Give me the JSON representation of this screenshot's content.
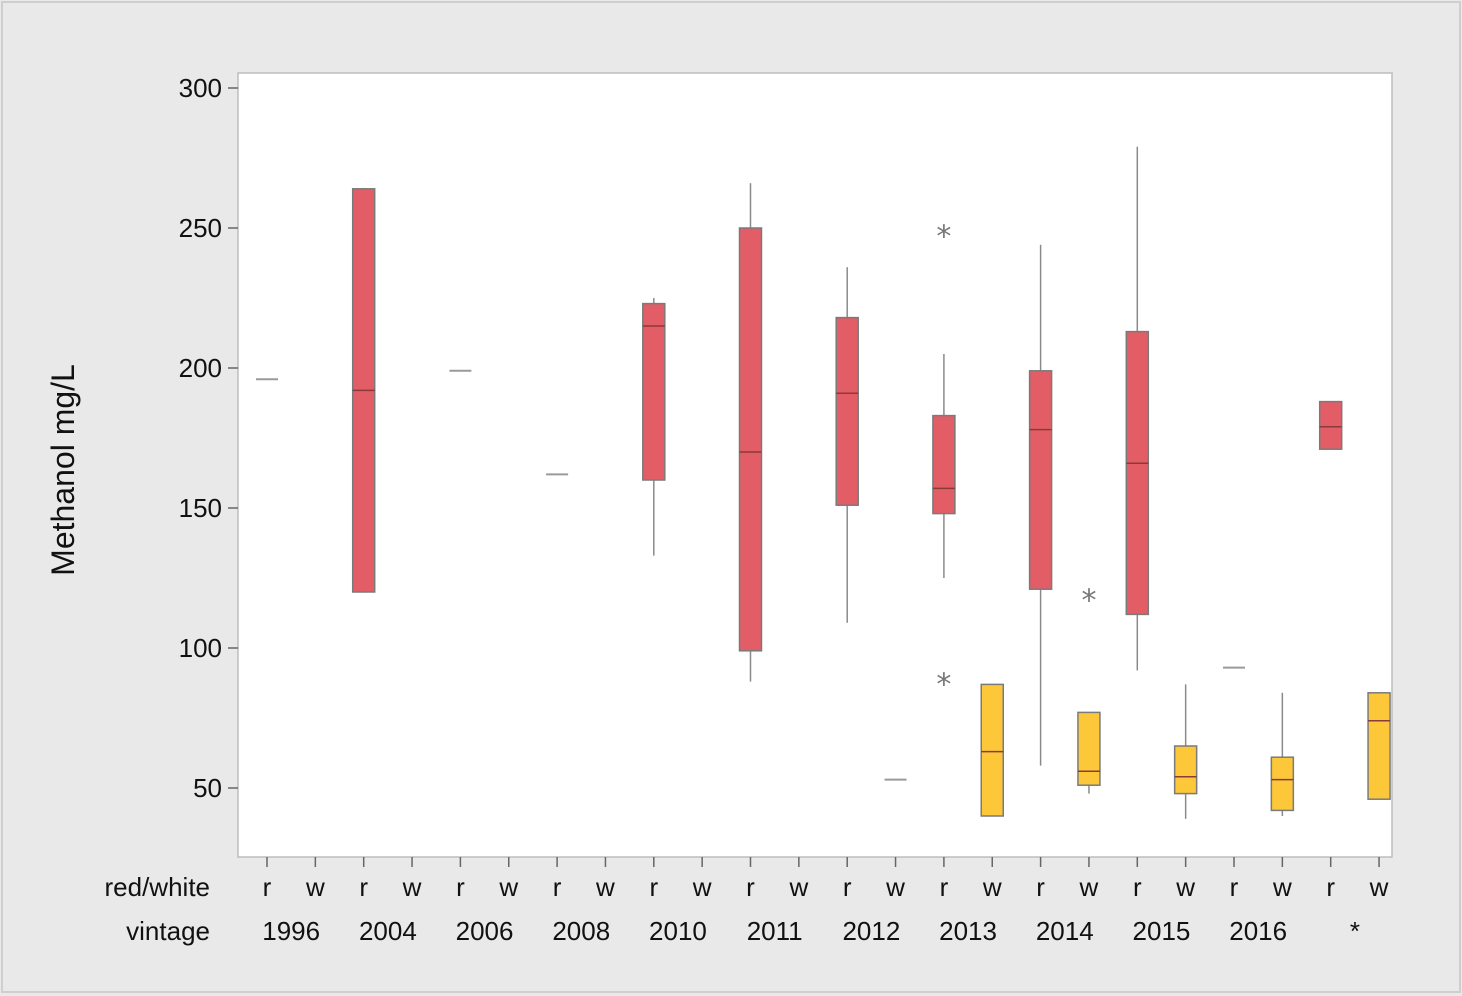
{
  "chart_data": {
    "type": "boxplot",
    "ylabel": "Methanol mg/L",
    "ylim": [
      35,
      305
    ],
    "yticks": [
      50,
      100,
      150,
      200,
      250,
      300
    ],
    "legend": "none",
    "grid": false,
    "row_labels": {
      "group": "red/white",
      "vintage": "vintage"
    },
    "group_values": [
      "r",
      "w"
    ],
    "vintages": [
      "1996",
      "2004",
      "2006",
      "2008",
      "2010",
      "2011",
      "2012",
      "2013",
      "2014",
      "2015",
      "2016",
      "*"
    ],
    "colors": {
      "r": "#e35d66",
      "w": "#fcc83a",
      "outline": "#7a7a7a"
    },
    "boxes": [
      {
        "vintage": "1996",
        "group": "r",
        "median": 196
      },
      {
        "vintage": "2004",
        "group": "r",
        "q1": 120,
        "median": 192,
        "q3": 264
      },
      {
        "vintage": "2006",
        "group": "r",
        "median": 199
      },
      {
        "vintage": "2008",
        "group": "r",
        "median": 162
      },
      {
        "vintage": "2010",
        "group": "r",
        "whisker_low": 133,
        "q1": 160,
        "median": 215,
        "q3": 223,
        "whisker_high": 225
      },
      {
        "vintage": "2011",
        "group": "r",
        "whisker_low": 88,
        "q1": 99,
        "median": 170,
        "q3": 250,
        "whisker_high": 266
      },
      {
        "vintage": "2012",
        "group": "r",
        "whisker_low": 109,
        "q1": 151,
        "median": 191,
        "q3": 218,
        "whisker_high": 236
      },
      {
        "vintage": "2012",
        "group": "w",
        "median": 53
      },
      {
        "vintage": "2013",
        "group": "r",
        "whisker_low": 125,
        "q1": 148,
        "median": 157,
        "q3": 183,
        "whisker_high": 205,
        "outliers": [
          248,
          88
        ]
      },
      {
        "vintage": "2013",
        "group": "w",
        "q1": 40,
        "median": 63,
        "q3": 87
      },
      {
        "vintage": "2014",
        "group": "r",
        "whisker_low": 58,
        "q1": 121,
        "median": 178,
        "q3": 199,
        "whisker_high": 244
      },
      {
        "vintage": "2014",
        "group": "w",
        "whisker_low": 48,
        "q1": 51,
        "median": 56,
        "q3": 77,
        "outliers": [
          118
        ]
      },
      {
        "vintage": "2015",
        "group": "r",
        "whisker_low": 92,
        "q1": 112,
        "median": 166,
        "q3": 213,
        "whisker_high": 279
      },
      {
        "vintage": "2015",
        "group": "w",
        "whisker_low": 39,
        "q1": 48,
        "median": 54,
        "q3": 65,
        "whisker_high": 87
      },
      {
        "vintage": "2016",
        "group": "r",
        "median": 93
      },
      {
        "vintage": "2016",
        "group": "w",
        "whisker_low": 40,
        "q1": 42,
        "median": 53,
        "q3": 61,
        "whisker_high": 84
      },
      {
        "vintage": "*",
        "group": "r",
        "q1": 171,
        "median": 179,
        "q3": 188
      },
      {
        "vintage": "*",
        "group": "w",
        "q1": 46,
        "median": 74,
        "q3": 84
      }
    ]
  }
}
